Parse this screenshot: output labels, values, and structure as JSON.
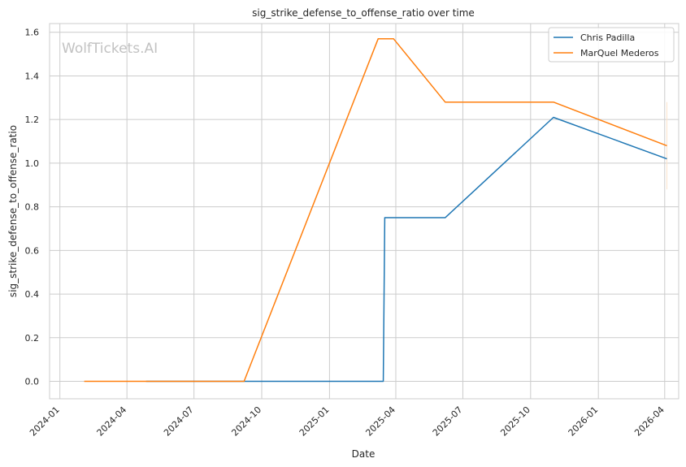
{
  "chart_data": {
    "type": "line",
    "title": "sig_strike_defense_to_offense_ratio over time",
    "xlabel": "Date",
    "ylabel": "sig_strike_defense_to_offense_ratio",
    "watermark": "WolfTickets.AI",
    "x_type": "date",
    "xlim": [
      "2023-12-18",
      "2026-04-20"
    ],
    "ylim": [
      -0.08,
      1.64
    ],
    "x_ticks": [
      "2024-01-01",
      "2024-04-01",
      "2024-07-01",
      "2024-10-01",
      "2025-01-01",
      "2025-04-01",
      "2025-07-01",
      "2025-10-01",
      "2026-01-01",
      "2026-04-01"
    ],
    "x_tick_labels": [
      "2024-01",
      "2024-04",
      "2024-07",
      "2024-10",
      "2025-01",
      "2025-04",
      "2025-07",
      "2025-10",
      "2026-01",
      "2026-04"
    ],
    "y_ticks": [
      0.0,
      0.2,
      0.4,
      0.6,
      0.8,
      1.0,
      1.2,
      1.4,
      1.6
    ],
    "y_tick_labels": [
      "0.0",
      "0.2",
      "0.4",
      "0.6",
      "0.8",
      "1.0",
      "1.2",
      "1.4",
      "1.6"
    ],
    "grid": true,
    "legend_position": "top-right",
    "series": [
      {
        "name": "Chris Padilla",
        "color": "#1f77b4",
        "points": [
          {
            "x": "2024-04-27",
            "y": 0.0
          },
          {
            "x": "2025-03-15",
            "y": 0.0
          },
          {
            "x": "2025-03-17",
            "y": 0.75
          },
          {
            "x": "2025-06-07",
            "y": 0.75
          },
          {
            "x": "2025-11-01",
            "y": 1.21
          },
          {
            "x": "2026-04-04",
            "y": 1.02
          }
        ]
      },
      {
        "name": "MarQuel Mederos",
        "color": "#ff7f0e",
        "points": [
          {
            "x": "2024-02-03",
            "y": 0.0
          },
          {
            "x": "2024-09-07",
            "y": 0.0
          },
          {
            "x": "2025-03-08",
            "y": 1.57
          },
          {
            "x": "2025-03-29",
            "y": 1.57
          },
          {
            "x": "2025-06-07",
            "y": 1.28
          },
          {
            "x": "2025-11-01",
            "y": 1.28
          },
          {
            "x": "2026-04-04",
            "y": 1.08
          }
        ]
      }
    ],
    "annotations": [
      {
        "type": "error-bar",
        "x": "2026-04-04",
        "y_low": 0.88,
        "y_high": 1.28,
        "color": "#fbe3cc"
      }
    ]
  }
}
